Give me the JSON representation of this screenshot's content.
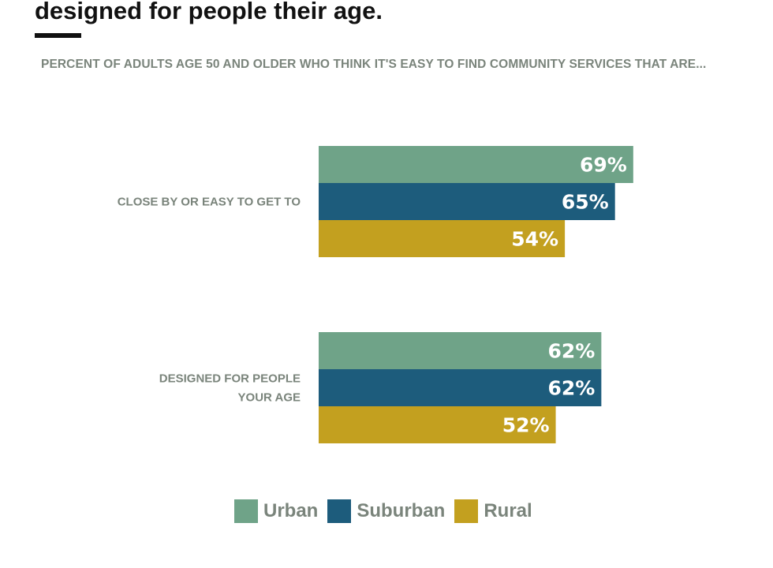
{
  "headline": "designed for people their age.",
  "subtitle": "PERCENT OF ADULTS AGE 50 AND OLDER WHO THINK IT'S EASY TO FIND COMMUNITY SERVICES THAT ARE...",
  "colors": {
    "urban": "#6fa388",
    "suburban": "#1d5c7c",
    "rural": "#c3a01f"
  },
  "chart_data": {
    "type": "bar",
    "orientation": "horizontal",
    "categories": [
      [
        "CLOSE BY OR EASY TO GET TO"
      ],
      [
        "DESIGNED FOR PEOPLE",
        "YOUR AGE"
      ]
    ],
    "series": [
      {
        "name": "Urban",
        "color": "#6fa388",
        "values": [
          69,
          62
        ]
      },
      {
        "name": "Suburban",
        "color": "#1d5c7c",
        "values": [
          65,
          62
        ]
      },
      {
        "name": "Rural",
        "color": "#c3a01f",
        "values": [
          54,
          52
        ]
      }
    ],
    "value_suffix": "%",
    "xlim": [
      0,
      100
    ],
    "legend": "bottom-center"
  }
}
